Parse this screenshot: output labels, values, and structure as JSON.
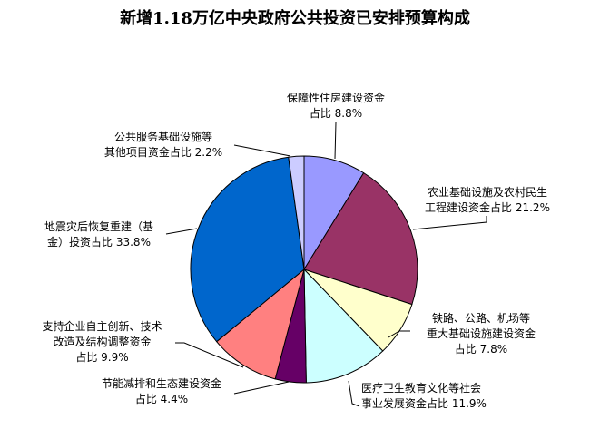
{
  "chart_data": {
    "type": "pie",
    "title": "新增1.18万亿中央政府公共投资已安排预算构成",
    "start": "top",
    "direction": "clockwise",
    "slices": [
      {
        "label_lines": [
          "保障性住房建设资金",
          "占比 8.8%"
        ],
        "value": 8.8,
        "color": "#9999FF"
      },
      {
        "label_lines": [
          "农业基础设施及农村民生",
          "工程建设资金占比 21.2%"
        ],
        "value": 21.2,
        "color": "#993366"
      },
      {
        "label_lines": [
          "铁路、公路、机场等",
          "重大基础设施建设资金",
          "占比 7.8%"
        ],
        "value": 7.8,
        "color": "#FFFFCC"
      },
      {
        "label_lines": [
          "医疗卫生教育文化等社会",
          "事业发展资金占比 11.9%"
        ],
        "value": 11.9,
        "color": "#CCFFFF"
      },
      {
        "label_lines": [
          "节能减排和生态建设资金",
          "占比 4.4%"
        ],
        "value": 4.4,
        "color": "#660066"
      },
      {
        "label_lines": [
          "支持企业自主创新、技术",
          "改造及结构调整资金",
          "占比 9.9%"
        ],
        "value": 9.9,
        "color": "#FF8080"
      },
      {
        "label_lines": [
          "地震灾后恢复重建（基",
          "金）投资占比 33.8%"
        ],
        "value": 33.8,
        "color": "#0066CC"
      },
      {
        "label_lines": [
          "公共服务基础设施等",
          "其他项目资金占比 2.2%"
        ],
        "value": 2.2,
        "color": "#CCCCFF"
      }
    ]
  }
}
